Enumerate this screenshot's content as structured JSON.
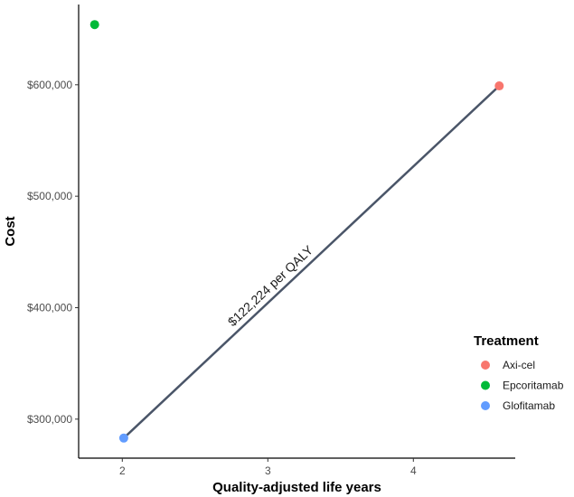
{
  "chart_data": {
    "type": "scatter",
    "xlabel": "Quality-adjusted life years",
    "ylabel": "Cost",
    "xlim": [
      1.7,
      4.7
    ],
    "ylim": [
      265000,
      672000
    ],
    "x_ticks": [
      2,
      3,
      4
    ],
    "y_ticks": [
      300000,
      400000,
      500000,
      600000
    ],
    "y_tick_labels": [
      "$300,000",
      "$400,000",
      "$500,000",
      "$600,000"
    ],
    "x_tick_labels": [
      "2",
      "3",
      "4"
    ],
    "grid": false,
    "legend": {
      "title": "Treatment",
      "placement": "right"
    },
    "series": [
      {
        "name": "Axi-cel",
        "color": "#F8766D",
        "points": [
          {
            "x": 4.59,
            "y": 599000
          }
        ]
      },
      {
        "name": "Epcoritamab",
        "color": "#00BA38",
        "points": [
          {
            "x": 1.81,
            "y": 654000
          }
        ]
      },
      {
        "name": "Glofitamab",
        "color": "#619CFF",
        "points": [
          {
            "x": 2.01,
            "y": 283000
          }
        ]
      }
    ],
    "segment": {
      "from": {
        "x": 2.01,
        "y": 283000
      },
      "to": {
        "x": 4.59,
        "y": 599000
      },
      "color": "#4a5568",
      "label": "$122,224 per QALY"
    }
  }
}
